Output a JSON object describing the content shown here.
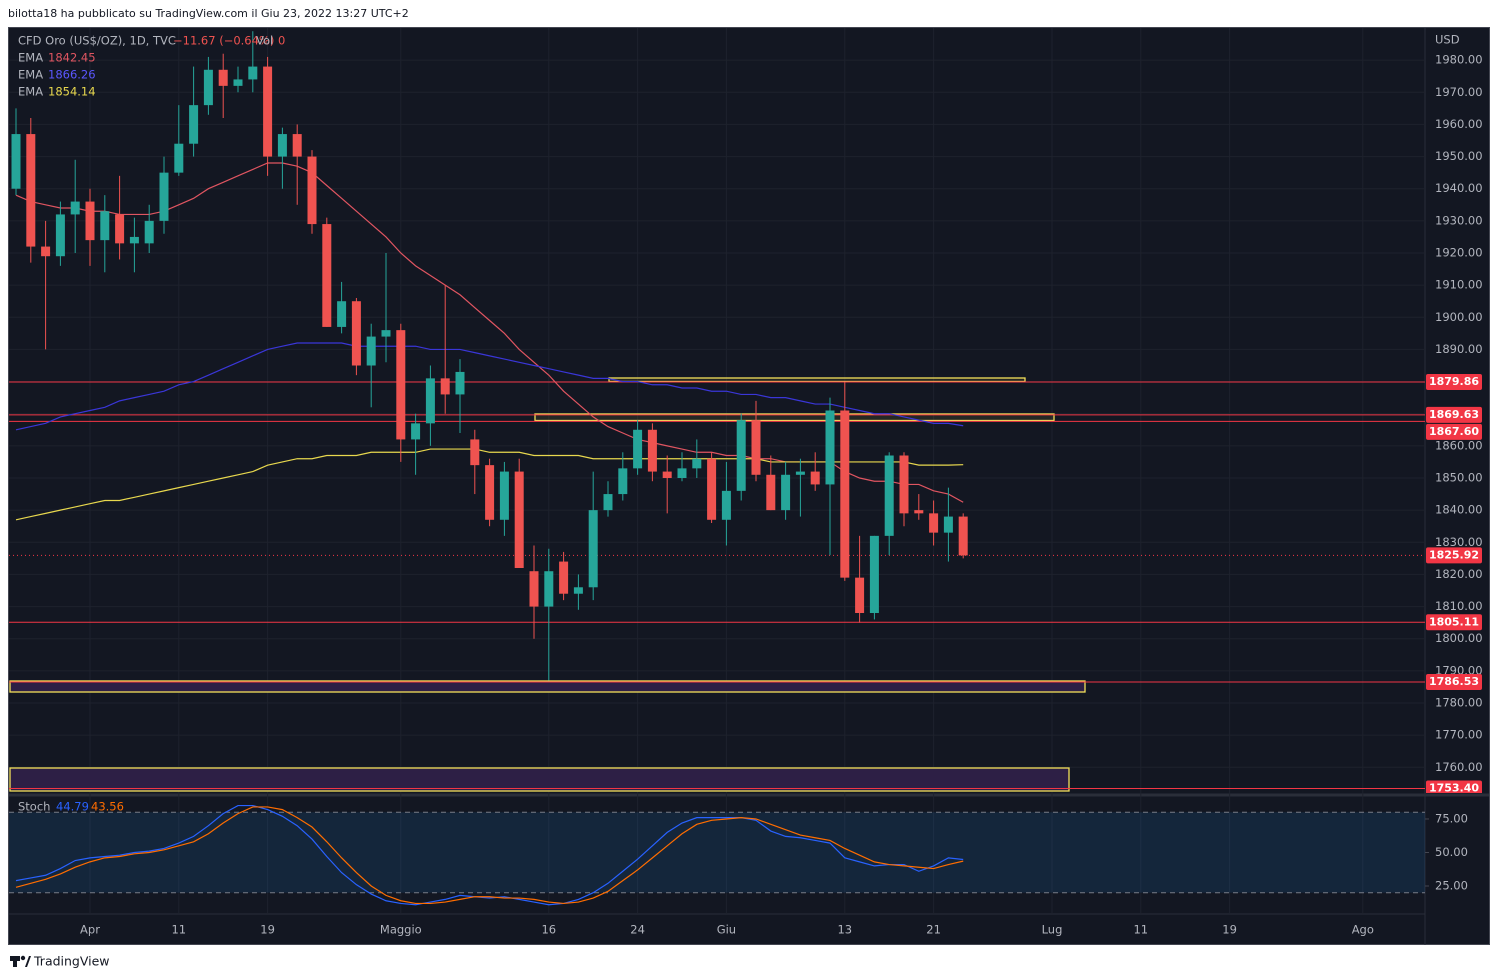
{
  "header": {
    "byline": "bilotta18 ha pubblicato su TradingView.com il Giu 23, 2022 13:27 UTC+2",
    "footer": "TradingView"
  },
  "chart_data": [
    {
      "type": "candlestick",
      "symbol": "CFD Oro (US$/OZ), 1D, TVC",
      "change": "−11.67 (−0.64%)",
      "volume_label": "Vol",
      "volume": 0,
      "currency": "USD",
      "up_color": "#26a69a",
      "down_color": "#ef5350",
      "grid": true,
      "categories": [
        null,
        null,
        null,
        null,
        null,
        "Apr",
        null,
        null,
        null,
        null,
        null,
        "11",
        null,
        null,
        null,
        null,
        null,
        "19",
        null,
        null,
        null,
        null,
        null,
        null,
        null,
        null,
        "Maggio",
        null,
        null,
        null,
        null,
        null,
        null,
        null,
        null,
        null,
        "16",
        null,
        null,
        null,
        null,
        null,
        "24",
        null,
        null,
        null,
        null,
        null,
        "Giu",
        null,
        null,
        null,
        null,
        null,
        null,
        null,
        "13",
        null,
        null,
        null,
        null,
        null,
        "21",
        null,
        null,
        null,
        null,
        null,
        null,
        null,
        "Lug",
        null,
        null,
        null,
        null,
        null,
        "11",
        null,
        null,
        null,
        null,
        null,
        "19",
        null,
        null,
        null,
        null,
        null,
        null,
        null,
        null,
        "Ago"
      ],
      "open": [
        1940,
        1957,
        1922,
        1919,
        1932,
        1936,
        1924,
        1932,
        1923,
        1923,
        1930,
        1945,
        1954,
        1966,
        1977,
        1972,
        1974,
        1978,
        1950,
        1957,
        1950,
        1929,
        1897,
        1905,
        1885,
        1894,
        1896,
        1862,
        1867,
        1881,
        1876,
        1862,
        1854,
        1837,
        1852,
        1821,
        1810,
        1824,
        1814,
        1816,
        1840,
        1845,
        1853,
        1865,
        1852,
        1850,
        1853,
        1856,
        1837,
        1846,
        1868,
        1851,
        1840,
        1851,
        1852,
        1848,
        1871,
        1819,
        1808,
        1832,
        1857,
        1840,
        1839,
        1833,
        1838,
        null,
        null,
        null,
        null,
        null,
        null,
        null,
        null,
        null,
        null,
        null,
        null,
        null,
        null,
        null,
        null,
        null,
        null,
        null,
        null,
        null,
        null,
        null,
        null,
        null,
        null,
        null
      ],
      "high": [
        1965,
        1962,
        1930,
        1936,
        1949,
        1940,
        1938,
        1944,
        1931,
        1935,
        1950,
        1966,
        1978,
        1981,
        1982,
        1978,
        1989,
        1981,
        1959,
        1960,
        1952,
        1931,
        1911,
        1906,
        1898,
        1920,
        1898,
        1870,
        1885,
        1910,
        1887,
        1865,
        1856,
        1855,
        1856,
        1829,
        1828,
        1827,
        1820,
        1852,
        1849,
        1858,
        1868,
        1867,
        1857,
        1858,
        1862,
        1858,
        1855,
        1870,
        1874,
        1857,
        1855,
        1856,
        1858,
        1875,
        1880,
        1832,
        1832,
        1858,
        1858,
        1845,
        1843,
        1847,
        1839,
        null,
        null,
        null,
        null,
        null,
        null,
        null,
        null,
        null,
        null,
        null,
        null,
        null,
        null,
        null,
        null,
        null,
        null,
        null,
        null,
        null,
        null,
        null,
        null,
        null,
        null,
        null
      ],
      "low": [
        1938,
        1917,
        1890,
        1916,
        1920,
        1916,
        1914,
        1918,
        1914,
        1920,
        1926,
        1944,
        1950,
        1963,
        1962,
        1970,
        1970,
        1944,
        1940,
        1935,
        1926,
        1897,
        1895,
        1882,
        1872,
        1886,
        1855,
        1851,
        1860,
        1870,
        1864,
        1845,
        1835,
        1832,
        1822,
        1800,
        1787,
        1812,
        1809,
        1812,
        1838,
        1843,
        1851,
        1849,
        1839,
        1849,
        1850,
        1836,
        1829,
        1843,
        1849,
        1840,
        1837,
        1838,
        1846,
        1826,
        1818,
        1805,
        1806,
        1826,
        1835,
        1837,
        1829,
        1824,
        1825,
        null,
        null,
        null,
        null,
        null,
        null,
        null,
        null,
        null,
        null,
        null,
        null,
        null,
        null,
        null,
        null,
        null,
        null,
        null,
        null,
        null,
        null,
        null,
        null,
        null,
        null,
        null
      ],
      "close": [
        1957,
        1922,
        1919,
        1932,
        1936,
        1924,
        1933,
        1923,
        1925,
        1930,
        1945,
        1954,
        1966,
        1977,
        1972,
        1974,
        1978,
        1950,
        1957,
        1950,
        1929,
        1897,
        1905,
        1885,
        1894,
        1896,
        1862,
        1867,
        1881,
        1876,
        1883,
        1854,
        1837,
        1852,
        1822,
        1810,
        1821,
        1814,
        1816,
        1840,
        1845,
        1853,
        1865,
        1852,
        1850,
        1853,
        1856,
        1837,
        1846,
        1868,
        1851,
        1840,
        1851,
        1852,
        1848,
        1871,
        1819,
        1808,
        1832,
        1857,
        1839,
        1839,
        1833,
        1838,
        1825.92,
        null,
        null,
        null,
        null,
        null,
        null,
        null,
        null,
        null,
        null,
        null,
        null,
        null,
        null,
        null,
        null,
        null,
        null,
        null,
        null,
        null,
        null,
        null,
        null,
        null,
        null,
        null
      ],
      "series": [
        {
          "name": "EMA",
          "color": "#e05561",
          "values": [
            1938,
            1936,
            1935,
            1934,
            1934,
            1933,
            1933,
            1932,
            1932,
            1932,
            1933,
            1935,
            1937,
            1940,
            1942,
            1944,
            1946,
            1948,
            1948,
            1947,
            1945,
            1941,
            1937,
            1933,
            1929,
            1925,
            1920,
            1916,
            1913,
            1910,
            1907,
            1903,
            1899,
            1895,
            1890,
            1886,
            1882,
            1877,
            1873,
            1869,
            1866,
            1864,
            1862,
            1861,
            1860,
            1859,
            1858,
            1858,
            1857,
            1857,
            1856,
            1856,
            1855,
            1855,
            1855,
            1855,
            1852,
            1850,
            1849,
            1849,
            1848,
            1848,
            1846,
            1845,
            1842.45,
            null,
            null,
            null,
            null,
            null,
            null,
            null,
            null,
            null,
            null,
            null,
            null,
            null,
            null,
            null,
            null,
            null,
            null,
            null,
            null,
            null,
            null,
            null,
            null,
            null,
            null,
            null
          ]
        },
        {
          "name": "EMA",
          "color": "#3a36d8",
          "values": [
            1865,
            1866,
            1867,
            1869,
            1870,
            1871,
            1872,
            1874,
            1875,
            1876,
            1877,
            1879,
            1880,
            1882,
            1884,
            1886,
            1888,
            1890,
            1891,
            1892,
            1892,
            1892,
            1892,
            1891,
            1891,
            1891,
            1891,
            1891,
            1890,
            1890,
            1890,
            1889,
            1888,
            1887,
            1886,
            1885,
            1884,
            1883,
            1882,
            1881,
            1881,
            1880,
            1880,
            1879,
            1879,
            1878,
            1878,
            1877,
            1877,
            1876,
            1876,
            1875,
            1875,
            1874,
            1873,
            1873,
            1872,
            1871,
            1870,
            1870,
            1869,
            1868,
            1867,
            1867,
            1866.26,
            null,
            null,
            null,
            null,
            null,
            null,
            null,
            null,
            null,
            null,
            null,
            null,
            null,
            null,
            null,
            null,
            null,
            null,
            null,
            null,
            null,
            null,
            null,
            null,
            null,
            null,
            null
          ]
        },
        {
          "name": "EMA",
          "color": "#e8d84e",
          "values": [
            1837,
            1838,
            1839,
            1840,
            1841,
            1842,
            1843,
            1843,
            1844,
            1845,
            1846,
            1847,
            1848,
            1849,
            1850,
            1851,
            1852,
            1854,
            1855,
            1856,
            1856,
            1857,
            1857,
            1857,
            1858,
            1858,
            1858,
            1858,
            1859,
            1859,
            1859,
            1859,
            1858,
            1858,
            1858,
            1857,
            1857,
            1857,
            1857,
            1856,
            1856,
            1856,
            1856,
            1856,
            1856,
            1856,
            1856,
            1856,
            1856,
            1856,
            1856,
            1855,
            1855,
            1855,
            1855,
            1855,
            1855,
            1855,
            1855,
            1855,
            1855,
            1854,
            1854,
            1854,
            1854.14,
            null,
            null,
            null,
            null,
            null,
            null,
            null,
            null,
            null,
            null,
            null,
            null,
            null,
            null,
            null,
            null,
            null,
            null,
            null,
            null,
            null,
            null,
            null,
            null,
            null,
            null,
            null
          ]
        }
      ],
      "levels": [
        1879.86,
        1869.63,
        {
          "value": 1867.6,
          "label": "1867.60"
        },
        1805.11,
        1786.53,
        {
          "value": 1753.4,
          "label": "1753.40"
        }
      ],
      "ylim": [
        1752,
        1990
      ],
      "yticks": [
        {
          "value": 1980,
          "label": "1980.00"
        },
        {
          "value": 1970,
          "label": "1970.00"
        },
        {
          "value": 1960,
          "label": "1960.00"
        },
        {
          "value": 1950,
          "label": "1950.00"
        },
        {
          "value": 1940,
          "label": "1940.00"
        },
        {
          "value": 1930,
          "label": "1930.00"
        },
        {
          "value": 1920,
          "label": "1920.00"
        },
        {
          "value": 1910,
          "label": "1910.00"
        },
        {
          "value": 1900,
          "label": "1900.00"
        },
        {
          "value": 1890,
          "label": "1890.00"
        },
        {
          "value": 1880,
          "label": "1880.00"
        },
        {
          "value": 1870,
          "label": "1870.00"
        },
        {
          "value": 1860,
          "label": "1860.00"
        },
        {
          "value": 1850,
          "label": "1850.00"
        },
        {
          "value": 1840,
          "label": "1840.00"
        },
        {
          "value": 1830,
          "label": "1830.00"
        },
        {
          "value": 1820,
          "label": "1820.00"
        },
        {
          "value": 1810,
          "label": "1810.00"
        },
        {
          "value": 1800,
          "label": "1800.00"
        },
        {
          "value": 1790,
          "label": "1790.00"
        },
        {
          "value": 1780,
          "label": "1780.00"
        },
        {
          "value": 1770,
          "label": "1770.00"
        },
        {
          "value": 1760,
          "label": "1760.00"
        }
      ]
    },
    {
      "type": "line",
      "title": "Stoch",
      "band": [
        20,
        80
      ],
      "band_color": "#2196f3",
      "series": [
        {
          "color": "#2962ff",
          "values": [
            29,
            31,
            33,
            38,
            44,
            46,
            47,
            48,
            50,
            51,
            53,
            57,
            62,
            70,
            79,
            85,
            85,
            82,
            77,
            70,
            60,
            47,
            35,
            26,
            19,
            14,
            12,
            11,
            13,
            15,
            18,
            17,
            16,
            17,
            15,
            13,
            11,
            12,
            15,
            20,
            27,
            36,
            45,
            55,
            65,
            72,
            76,
            76,
            76,
            76,
            74,
            66,
            62,
            61,
            59,
            57,
            46,
            43,
            40,
            41,
            41,
            36,
            40,
            46,
            44.79,
            null,
            null,
            null,
            null,
            null,
            null,
            null,
            null,
            null,
            null,
            null,
            null,
            null,
            null,
            null,
            null,
            null,
            null,
            null,
            null,
            null,
            null,
            null,
            null,
            null,
            null,
            null
          ]
        },
        {
          "color": "#ff6d00",
          "values": [
            24,
            27,
            30,
            34,
            39,
            43,
            46,
            47,
            49,
            50,
            52,
            55,
            58,
            64,
            72,
            79,
            84,
            84,
            82,
            76,
            69,
            58,
            46,
            35,
            25,
            18,
            14,
            12,
            12,
            13,
            15,
            17,
            17,
            16,
            16,
            15,
            13,
            12,
            13,
            16,
            21,
            29,
            37,
            46,
            55,
            64,
            71,
            74,
            75,
            76,
            75,
            71,
            67,
            63,
            61,
            59,
            53,
            48,
            43,
            41,
            40,
            39,
            38,
            41,
            43.56,
            null,
            null,
            null,
            null,
            null,
            null,
            null,
            null,
            null,
            null,
            null,
            null,
            null,
            null,
            null,
            null,
            null,
            null,
            null,
            null,
            null,
            null,
            null,
            null,
            null,
            null,
            null
          ]
        }
      ],
      "ylim": [
        5.6,
        91.4
      ],
      "yticks": [
        {
          "value": 75,
          "label": "75.00"
        },
        {
          "value": 50,
          "label": "50.00"
        },
        {
          "value": 25,
          "label": "25.00"
        }
      ]
    }
  ]
}
